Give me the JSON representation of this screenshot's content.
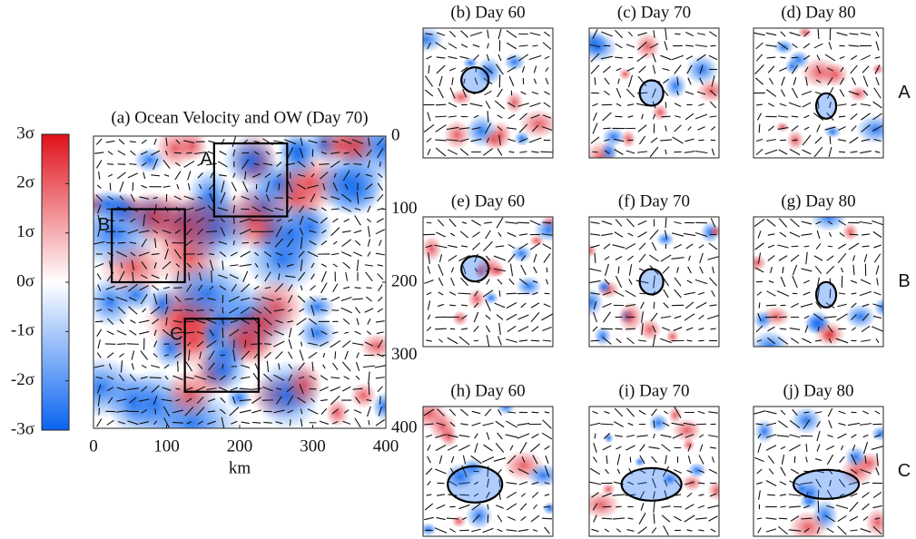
{
  "chart_data": [
    {
      "type": "heatmap",
      "title": "(a) Ocean Velocity and OW (Day 70)",
      "x_label": "km",
      "xlim": [
        0,
        400
      ],
      "xticks": [
        0,
        100,
        200,
        300,
        400
      ],
      "ylim": [
        0,
        400
      ],
      "yticks": [
        0,
        100,
        200,
        300,
        400
      ],
      "regions": [
        {
          "label": "A",
          "x": [
            165,
            265
          ],
          "y": [
            10,
            110
          ]
        },
        {
          "label": "B",
          "x": [
            25,
            125
          ],
          "y": [
            100,
            200
          ]
        },
        {
          "label": "C",
          "x": [
            125,
            226
          ],
          "y": [
            250,
            350
          ]
        }
      ],
      "colorbar": {
        "lim": [
          -3,
          3
        ],
        "ticks": [
          {
            "value": 3,
            "label": "3σ"
          },
          {
            "value": 2,
            "label": "2σ"
          },
          {
            "value": 1,
            "label": "1σ"
          },
          {
            "value": 0,
            "label": "0σ"
          },
          {
            "value": -1,
            "label": "-1σ"
          },
          {
            "value": -2,
            "label": "-2σ"
          },
          {
            "value": -3,
            "label": "-3σ"
          }
        ],
        "colors": [
          "#0a64f0",
          "#ffffff",
          "#e0101a"
        ]
      }
    },
    {
      "type": "panel-row",
      "label": "A",
      "panels": [
        "(b) Day 60",
        "(c) Day 70",
        "(d) Day 80"
      ]
    },
    {
      "type": "panel-row",
      "label": "B",
      "panels": [
        "(e) Day 60",
        "(f) Day 70",
        "(g) Day 80"
      ]
    },
    {
      "type": "panel-row",
      "label": "C",
      "panels": [
        "(h) Day 60",
        "(i) Day 70",
        "(j) Day 80"
      ]
    }
  ]
}
